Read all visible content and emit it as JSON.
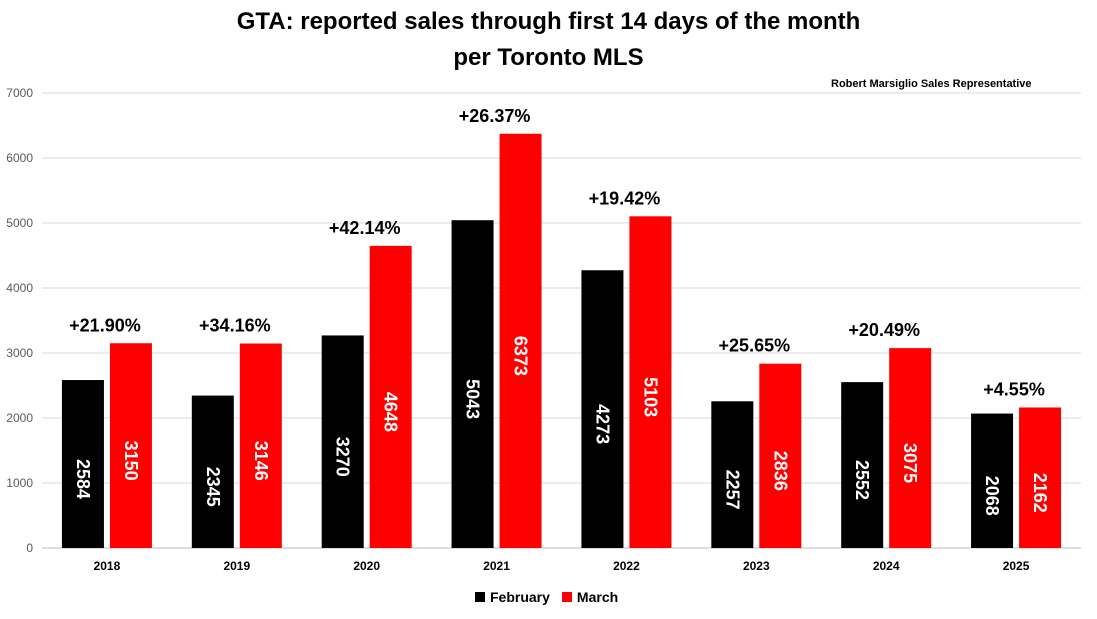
{
  "chart_data": {
    "type": "bar",
    "title": "GTA: reported sales through first 14 days of the month",
    "subtitle": "per Toronto MLS",
    "annotation": "Robert Marsiglio Sales Representative",
    "categories": [
      "2018",
      "2019",
      "2020",
      "2021",
      "2022",
      "2023",
      "2024",
      "2025"
    ],
    "series": [
      {
        "name": "February",
        "color": "#000000",
        "values": [
          2584,
          2345,
          3270,
          5043,
          4273,
          2257,
          2552,
          2068
        ]
      },
      {
        "name": "March",
        "color": "#ff0000",
        "values": [
          3150,
          3146,
          4648,
          6373,
          5103,
          2836,
          3075,
          2162
        ]
      }
    ],
    "change_labels": [
      "+21.90%",
      "+34.16%",
      "+42.14%",
      "+26.37%",
      "+19.42%",
      "+25.65%",
      "+20.49%",
      "+4.55%"
    ],
    "ylim": [
      0,
      7000
    ],
    "yticks": [
      0,
      1000,
      2000,
      3000,
      4000,
      5000,
      6000,
      7000
    ],
    "grid": true,
    "legend": "bottom-center",
    "xlabel": "",
    "ylabel": ""
  }
}
